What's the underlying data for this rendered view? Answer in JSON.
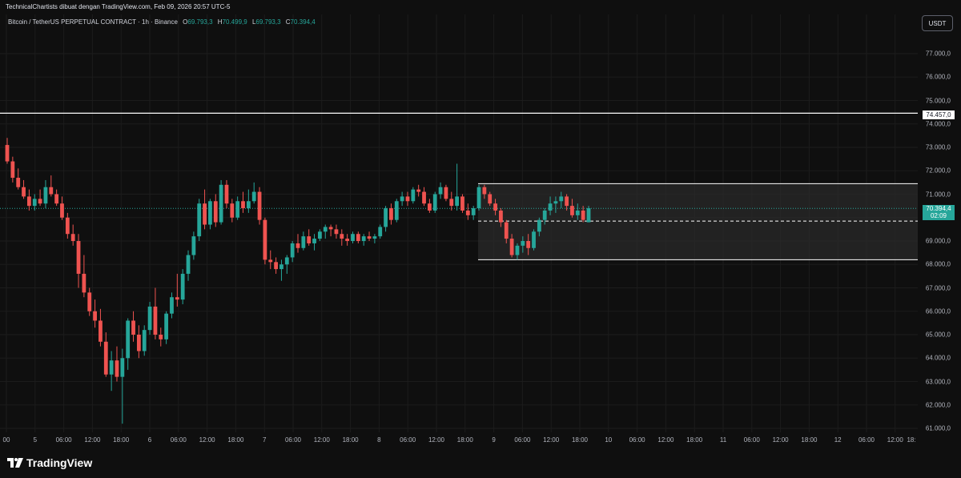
{
  "header": {
    "attribution": "TechnicalChartists dibuat dengan TradingView.com, Feb 09, 2026 20:57 UTC-5"
  },
  "legend": {
    "symbol": "Bitcoin / TetherUS PERPETUAL CONTRACT · 1h · Binance",
    "o_label": "O",
    "o_value": "69.793,3",
    "h_label": "H",
    "h_value": "70.499,9",
    "l_label": "L",
    "l_value": "69.793,3",
    "c_label": "C",
    "c_value": "70.394,4"
  },
  "currency_button": "USDT",
  "y_axis": {
    "ticks": [
      "77.000,0",
      "76.000,0",
      "75.000,0",
      "74.000,0",
      "73.000,0",
      "72.000,0",
      "71.000,0",
      "69.000,0",
      "68.000,0",
      "67.000,0",
      "66.000,0",
      "65.000,0",
      "64.000,0",
      "63.000,0",
      "62.000,0",
      "61.000,0"
    ],
    "level_label": "74.457,0",
    "last_price_label": "70.394,4",
    "countdown_label": "02:09"
  },
  "x_axis": {
    "ticks": [
      "00",
      "5",
      "06:00",
      "12:00",
      "18:00",
      "6",
      "06:00",
      "12:00",
      "18:00",
      "7",
      "06:00",
      "12:00",
      "18:00",
      "8",
      "06:00",
      "12:00",
      "18:00",
      "9",
      "06:00",
      "12:00",
      "18:00",
      "10",
      "06:00",
      "12:00",
      "18:00",
      "11",
      "06:00",
      "12:00",
      "18:00",
      "12",
      "06:00",
      "12:00",
      "18:"
    ]
  },
  "colors": {
    "up": "#26a69a",
    "down": "#ef5350",
    "background": "#0f0f0f",
    "grid": "#1c1c1c"
  },
  "chart_data": {
    "type": "candlestick",
    "symbol": "Bitcoin / TetherUS PERPETUAL CONTRACT",
    "interval": "1h",
    "exchange": "Binance",
    "ylim": [
      60900,
      77300
    ],
    "resistance_level": 74457.0,
    "range_box": {
      "top": 71450,
      "bottom": 68200,
      "mid": 69850
    },
    "last_price": 70394.4,
    "candles": [
      [
        73100,
        73400,
        72300,
        72400
      ],
      [
        72400,
        72600,
        71500,
        71700
      ],
      [
        71700,
        72100,
        71200,
        71300
      ],
      [
        71300,
        71600,
        70800,
        70900
      ],
      [
        70900,
        71200,
        70300,
        70500
      ],
      [
        70500,
        71000,
        70300,
        70800
      ],
      [
        70800,
        71200,
        70500,
        70600
      ],
      [
        70600,
        71600,
        70400,
        71300
      ],
      [
        71300,
        71800,
        70900,
        71000
      ],
      [
        71000,
        71200,
        70500,
        70600
      ],
      [
        70600,
        70900,
        69900,
        70000
      ],
      [
        70000,
        70200,
        69100,
        69300
      ],
      [
        69300,
        69700,
        68800,
        69000
      ],
      [
        69000,
        69300,
        67000,
        67600
      ],
      [
        67600,
        68400,
        66600,
        66800
      ],
      [
        66800,
        67000,
        65800,
        66000
      ],
      [
        66000,
        66500,
        65300,
        65600
      ],
      [
        65600,
        66100,
        64500,
        64700
      ],
      [
        64700,
        65100,
        63200,
        63300
      ],
      [
        63300,
        64300,
        62600,
        63900
      ],
      [
        63900,
        64500,
        63000,
        63200
      ],
      [
        63200,
        64400,
        61200,
        64000
      ],
      [
        64000,
        65700,
        63500,
        65600
      ],
      [
        65600,
        66000,
        64700,
        65000
      ],
      [
        65000,
        65400,
        64000,
        64300
      ],
      [
        64300,
        65400,
        64100,
        65200
      ],
      [
        65200,
        66400,
        65000,
        66200
      ],
      [
        66200,
        67000,
        64800,
        65000
      ],
      [
        65000,
        65300,
        64500,
        64800
      ],
      [
        64800,
        66000,
        64600,
        65900
      ],
      [
        65900,
        66800,
        65700,
        66600
      ],
      [
        66600,
        67600,
        66200,
        66500
      ],
      [
        66500,
        67800,
        66300,
        67600
      ],
      [
        67600,
        68600,
        67300,
        68400
      ],
      [
        68400,
        69400,
        68200,
        69200
      ],
      [
        69200,
        70800,
        69000,
        70600
      ],
      [
        70600,
        71200,
        69500,
        69700
      ],
      [
        69700,
        70800,
        69500,
        70700
      ],
      [
        70700,
        71000,
        69600,
        69800
      ],
      [
        69800,
        71600,
        69700,
        71400
      ],
      [
        71400,
        71600,
        70400,
        70600
      ],
      [
        70600,
        70800,
        69800,
        70000
      ],
      [
        70000,
        70900,
        69900,
        70700
      ],
      [
        70700,
        71100,
        70200,
        70400
      ],
      [
        70400,
        71200,
        70200,
        70700
      ],
      [
        70700,
        71500,
        70600,
        71100
      ],
      [
        71100,
        71300,
        69700,
        69900
      ],
      [
        69900,
        70000,
        68000,
        68200
      ],
      [
        68200,
        68600,
        67800,
        68100
      ],
      [
        68100,
        68300,
        67600,
        67800
      ],
      [
        67800,
        68200,
        67300,
        68000
      ],
      [
        68000,
        68400,
        67600,
        68300
      ],
      [
        68300,
        69000,
        68100,
        68900
      ],
      [
        68900,
        69300,
        68500,
        68700
      ],
      [
        68700,
        69400,
        68600,
        69200
      ],
      [
        69200,
        69500,
        68800,
        68900
      ],
      [
        68900,
        69300,
        68600,
        69100
      ],
      [
        69100,
        69500,
        69000,
        69400
      ],
      [
        69400,
        69700,
        69100,
        69600
      ],
      [
        69600,
        69700,
        69200,
        69500
      ],
      [
        69500,
        69700,
        69100,
        69300
      ],
      [
        69300,
        69500,
        68800,
        69100
      ],
      [
        69100,
        69300,
        68800,
        69000
      ],
      [
        69000,
        69400,
        68900,
        69300
      ],
      [
        69300,
        69400,
        68900,
        69000
      ],
      [
        69000,
        69300,
        68800,
        69200
      ],
      [
        69200,
        69400,
        69000,
        69100
      ],
      [
        69100,
        69300,
        68900,
        69200
      ],
      [
        69200,
        69700,
        69100,
        69600
      ],
      [
        69600,
        70500,
        69400,
        70400
      ],
      [
        70400,
        70600,
        69700,
        69900
      ],
      [
        69900,
        70800,
        69800,
        70700
      ],
      [
        70700,
        71100,
        70500,
        70900
      ],
      [
        70900,
        71100,
        70500,
        70700
      ],
      [
        70700,
        71300,
        70600,
        71200
      ],
      [
        71200,
        71400,
        70900,
        71100
      ],
      [
        71100,
        71300,
        70500,
        70600
      ],
      [
        70600,
        70800,
        70200,
        70300
      ],
      [
        70300,
        71100,
        70200,
        71000
      ],
      [
        71000,
        71500,
        70800,
        71300
      ],
      [
        71300,
        71400,
        70700,
        70800
      ],
      [
        70800,
        71100,
        70300,
        70500
      ],
      [
        70500,
        72300,
        70300,
        70900
      ],
      [
        70900,
        71000,
        70200,
        70300
      ],
      [
        70300,
        70600,
        69900,
        70100
      ],
      [
        70100,
        70500,
        69900,
        70400
      ],
      [
        70400,
        71400,
        70300,
        71300
      ],
      [
        71300,
        71400,
        70800,
        71000
      ],
      [
        71000,
        71100,
        70500,
        70600
      ],
      [
        70600,
        70800,
        70100,
        70300
      ],
      [
        70300,
        70400,
        69600,
        69800
      ],
      [
        69800,
        69900,
        68900,
        69100
      ],
      [
        69100,
        69300,
        68300,
        68400
      ],
      [
        68400,
        68900,
        68200,
        68800
      ],
      [
        68800,
        69200,
        68500,
        69000
      ],
      [
        69000,
        69300,
        68400,
        68700
      ],
      [
        68700,
        69500,
        68600,
        69400
      ],
      [
        69400,
        70000,
        69200,
        69900
      ],
      [
        69900,
        70400,
        69700,
        70300
      ],
      [
        70300,
        70900,
        70100,
        70600
      ],
      [
        70600,
        70900,
        70200,
        70700
      ],
      [
        70700,
        71100,
        70400,
        70900
      ],
      [
        70900,
        71000,
        70300,
        70500
      ],
      [
        70500,
        70800,
        70000,
        70100
      ],
      [
        70100,
        70600,
        69900,
        70300
      ],
      [
        70300,
        70500,
        69800,
        69900
      ],
      [
        69800,
        70500,
        69800,
        70400
      ]
    ]
  }
}
